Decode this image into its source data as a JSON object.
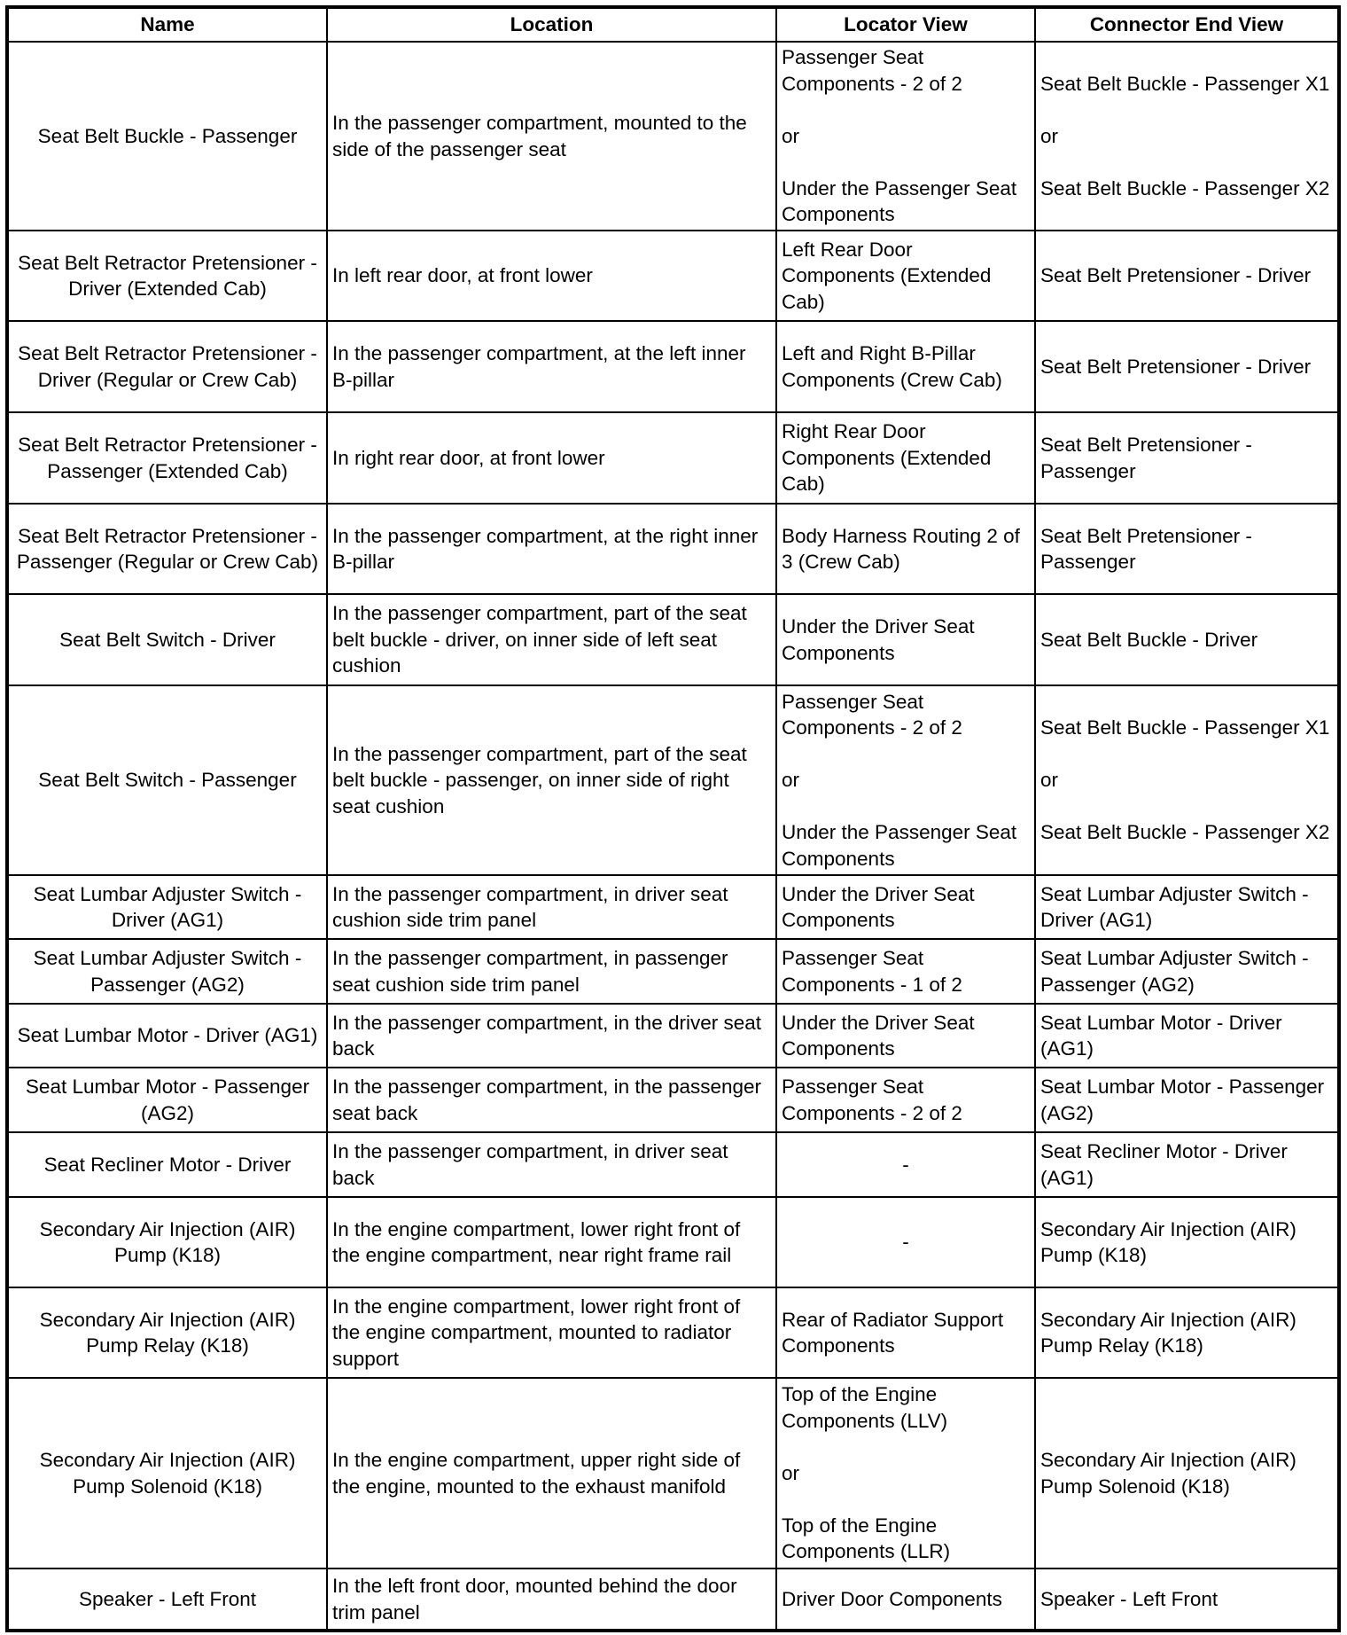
{
  "headers": [
    "Name",
    "Location",
    "Locator View",
    "Connector End View"
  ],
  "rows": [
    {
      "name": "Seat Belt Buckle - Passenger",
      "location": "In the passenger compartment, mounted to the side of the passenger seat",
      "locator": "Passenger Seat Components - 2 of 2\n\nor\n\nUnder the Passenger Seat Components",
      "connector": "Seat Belt Buckle - Passenger X1\n\nor\n\nSeat Belt Buckle - Passenger X2"
    },
    {
      "name": "Seat Belt Retractor Pretensioner - Driver (Extended Cab)",
      "location": "In left rear door, at front lower",
      "locator": "Left Rear Door Components (Extended Cab)",
      "connector": "Seat Belt Pretensioner - Driver"
    },
    {
      "name": "Seat Belt Retractor Pretensioner - Driver (Regular or Crew Cab)",
      "location": "In the passenger compartment, at the left inner B-pillar",
      "locator": "Left and Right B-Pillar Components (Crew Cab)",
      "connector": "Seat Belt Pretensioner - Driver"
    },
    {
      "name": "Seat Belt Retractor Pretensioner - Passenger (Extended Cab)",
      "location": "In right rear door, at front lower",
      "locator": "Right Rear Door Components (Extended Cab)",
      "connector": "Seat Belt Pretensioner - Passenger"
    },
    {
      "name": "Seat Belt Retractor Pretensioner - Passenger (Regular or Crew Cab)",
      "location": "In the passenger compartment, at the right inner B-pillar",
      "locator": "Body Harness Routing 2 of 3 (Crew Cab)",
      "connector": "Seat Belt Pretensioner - Passenger"
    },
    {
      "name": "Seat Belt Switch - Driver",
      "location": "In the passenger compartment, part of the seat belt buckle - driver, on inner side of left seat cushion",
      "locator": "Under the Driver Seat Components",
      "connector": "Seat Belt Buckle - Driver"
    },
    {
      "name": "Seat Belt Switch - Passenger",
      "location": "In the passenger compartment, part of the seat belt buckle - passenger, on inner side of right seat cushion",
      "locator": "Passenger Seat Components - 2 of 2\n\nor\n\nUnder the Passenger Seat Components",
      "connector": "Seat Belt Buckle - Passenger X1\n\nor\n\nSeat Belt Buckle - Passenger X2"
    },
    {
      "name": "Seat Lumbar Adjuster Switch - Driver (AG1)",
      "location": "In the passenger compartment, in driver seat cushion side trim panel",
      "locator": "Under the Driver Seat Components",
      "connector": "Seat Lumbar Adjuster Switch - Driver (AG1)"
    },
    {
      "name": "Seat Lumbar Adjuster Switch - Passenger (AG2)",
      "location": "In the passenger compartment, in passenger seat cushion side trim panel",
      "locator": "Passenger Seat Components - 1 of 2",
      "connector": "Seat Lumbar Adjuster Switch - Passenger (AG2)"
    },
    {
      "name": "Seat Lumbar Motor - Driver (AG1)",
      "location": "In the passenger compartment, in the driver seat back",
      "locator": "Under the Driver Seat Components",
      "connector": "Seat Lumbar Motor - Driver (AG1)"
    },
    {
      "name": "Seat Lumbar Motor - Passenger (AG2)",
      "location": "In the passenger compartment, in the passenger seat back",
      "locator": "Passenger Seat Components - 2 of 2",
      "connector": "Seat Lumbar Motor - Passenger (AG2)"
    },
    {
      "name": "Seat Recliner Motor - Driver",
      "location": "In the passenger compartment, in driver seat back",
      "locator": "-",
      "connector": "Seat Recliner Motor - Driver (AG1)"
    },
    {
      "name": "Secondary Air Injection (AIR) Pump (K18)",
      "location": "In the engine compartment, lower right front of the engine compartment, near right frame rail",
      "locator": "-",
      "connector": "Secondary Air Injection (AIR) Pump (K18)"
    },
    {
      "name": "Secondary Air Injection (AIR) Pump Relay (K18)",
      "location": "In the engine compartment, lower right front of the engine compartment, mounted to radiator support",
      "locator": "Rear of Radiator Support Components",
      "connector": "Secondary Air Injection (AIR) Pump Relay (K18)"
    },
    {
      "name": "Secondary Air Injection (AIR) Pump Solenoid (K18)",
      "location": "In the engine compartment, upper right side of the engine, mounted to the exhaust manifold",
      "locator": "Top of the Engine Components (LLV)\n\nor\n\nTop of the Engine Components (LLR)",
      "connector": "Secondary Air Injection (AIR) Pump Solenoid (K18)"
    },
    {
      "name": "Speaker - Left Front",
      "location": "In the left front door, mounted behind the door trim panel",
      "locator": "Driver Door Components",
      "connector": "Speaker - Left Front"
    }
  ]
}
